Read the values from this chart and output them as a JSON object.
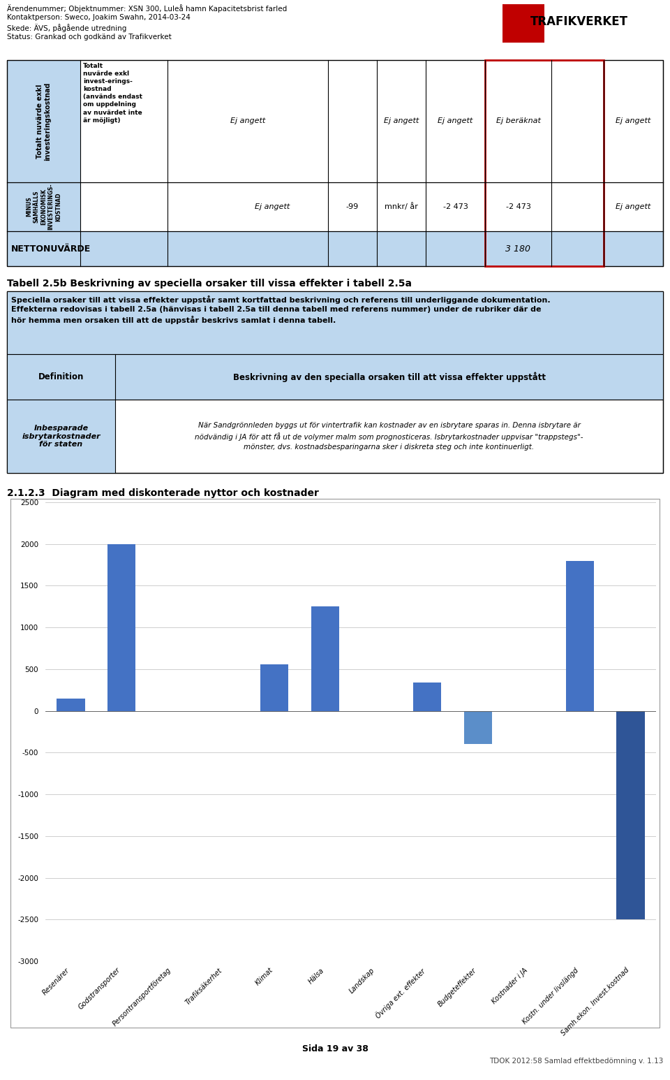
{
  "page_title_lines": [
    "Ärendenummer; Objektnummer: XSN 300, Luleå hamn Kapacitetsbrist farled",
    "Kontaktperson: Sweco, Joakim Swahn, 2014-03-24",
    "Skede: ÄVS, pågående utredning",
    "Status: Grankad och godkänd av Trafikverket"
  ],
  "logo_text": "TRAFIKVERKET",
  "t1_col1_text": "Totalt nuvärde exkl\ninvesteringskostnad",
  "t1_col2_text": "Totalt\nnuvärde exkl\ninvest-erings-\nkostnad\n(används endast\nom uppdelning\nav nuvärdet inte\när möjligt)",
  "t1_col2_text_bold": true,
  "t1_row1_cells": [
    "Ej angett",
    "",
    "Ej angett",
    "Ej angett",
    "Ej beräknat",
    "",
    "Ej angett"
  ],
  "t1_row2_col1_text": "MINUS\nSAMHÄLLS\nEKONOMISK\nINVESTERINGS-\nKOSTNAD",
  "t1_row2_cells": [
    "Ej angett",
    "-99",
    "mnkr/ år",
    "-2 473",
    "-2 473",
    "Ej angett"
  ],
  "t1_row3_label": "NETTONUVÄRDE",
  "t1_row3_value": "3 180",
  "section_title": "Tabell 2.5b Beskrivning av speciella orsaker till vissa effekter i tabell 2.5a",
  "desc_text": "Speciella orsaker till att vissa effekter uppstår samt kortfattad beskrivning och referens till underliggande dokumentation.\nEffekterna redovisas i tabell 2.5a (hänvisas i tabell 2.5a till denna tabell med referens nummer) under de rubriker där de\nhör hemma men orsaken till att de uppstår beskrivs samlat i denna tabell.",
  "t2_hdr1": "Definition",
  "t2_hdr2": "Beskrivning av den specialla orsaken till att vissa effekter uppstått",
  "t2_row1_col1": "Inbesparade\nisbrytarkostnader\nför staten",
  "t2_row1_col2_lines": [
    "När Sandgrönnleden byggs ut för vintertrafik kan kostnader av en isbrytare sparas in. Denna isbrytare är",
    "nödvändig i JA för att få ut de volymer malm som prognosticeras. Isbrytarkostnader uppvisar \"trappstegs\"-",
    "mönster, dvs. kostnadsbesparingarna sker i diskreta steg och inte kontinuerligt."
  ],
  "chart_title": "2.1.2.3  Diagram med diskonterade nyttor och kostnader",
  "bar_categories": [
    "Resenärer",
    "Godstransporter",
    "Persontransportföretag",
    "Trafiksäkerhet",
    "Klimat",
    "Hälsa",
    "Landskap",
    "Övriga ext. effekter",
    "Budgeteffekter",
    "Kostnader i JA",
    "Kostn. under livslängd",
    "Samh.ekon. Invest.kostnad"
  ],
  "bar_values": [
    150,
    2000,
    0,
    0,
    560,
    1250,
    0,
    340,
    -400,
    0,
    1800,
    -2500
  ],
  "bar_color": "#4472C4",
  "bar_color_dark": "#2F5597",
  "ylim": [
    -3000,
    2500
  ],
  "yticks": [
    -3000,
    -2500,
    -2000,
    -1500,
    -1000,
    -500,
    0,
    500,
    1000,
    1500,
    2000,
    2500
  ],
  "light_blue": "#BDD7EE",
  "footer_left": "Sida 19 av 38",
  "footer_right": "TDOK 2012:58 Samlad effektbedömning v. 1.13"
}
